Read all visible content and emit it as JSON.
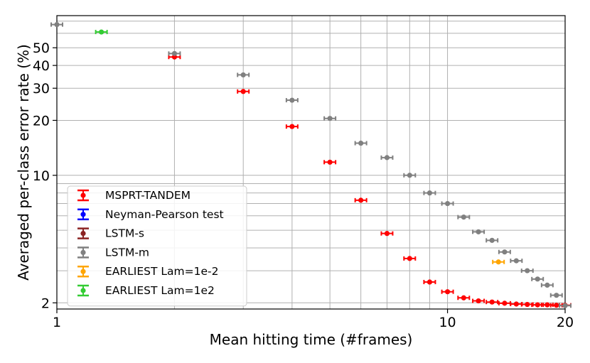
{
  "chart_data": {
    "type": "scatter",
    "xlabel": "Mean hitting time (#frames)",
    "ylabel": "Averaged per-class error rate (%)",
    "xscale": "log",
    "yscale": "log",
    "xlim": [
      1,
      20
    ],
    "ylim": [
      1.85,
      75
    ],
    "xticks": [
      1,
      10,
      20
    ],
    "yticks": [
      2,
      10,
      20,
      30,
      40,
      50
    ],
    "grid": true,
    "legend_position": "lower-left",
    "series": [
      {
        "name": "MSPRT-TANDEM",
        "color": "#ff0000",
        "x": [
          2.0,
          3.0,
          4.0,
          5.0,
          6.0,
          7.0,
          8.0,
          9.0,
          10.0,
          11.0,
          12.0,
          13.0,
          14.0,
          15.0,
          16.0,
          17.0,
          18.0,
          19.0,
          20.0
        ],
        "y": [
          44.5,
          28.8,
          18.5,
          11.8,
          7.3,
          4.8,
          3.5,
          2.6,
          2.3,
          2.13,
          2.05,
          2.02,
          1.99,
          1.97,
          1.96,
          1.95,
          1.95,
          1.94,
          1.94
        ]
      },
      {
        "name": "Neyman-Pearson test",
        "color": "#0000ff",
        "x": [],
        "y": []
      },
      {
        "name": "LSTM-s",
        "color": "#8b2323",
        "x": [],
        "y": []
      },
      {
        "name": "LSTM-m",
        "color": "#808080",
        "x": [
          1.0,
          2.0,
          3.0,
          4.0,
          5.0,
          6.0,
          7.0,
          8.0,
          9.0,
          10.0,
          11.0,
          12.0,
          13.0,
          14.0,
          15.0,
          16.0,
          17.0,
          18.0,
          19.0,
          20.0
        ],
        "y": [
          67.0,
          46.5,
          35.5,
          25.8,
          20.5,
          15.0,
          12.5,
          10.0,
          8.0,
          7.0,
          5.9,
          4.9,
          4.4,
          3.8,
          3.4,
          3.0,
          2.7,
          2.5,
          2.2,
          1.93
        ]
      },
      {
        "name": "EARLIEST Lam=1e-2",
        "color": "#ffa500",
        "x": [
          13.5
        ],
        "y": [
          3.35
        ]
      },
      {
        "name": "EARLIEST Lam=1e2",
        "color": "#33cc33",
        "x": [
          1.3
        ],
        "y": [
          61.0
        ]
      }
    ]
  }
}
